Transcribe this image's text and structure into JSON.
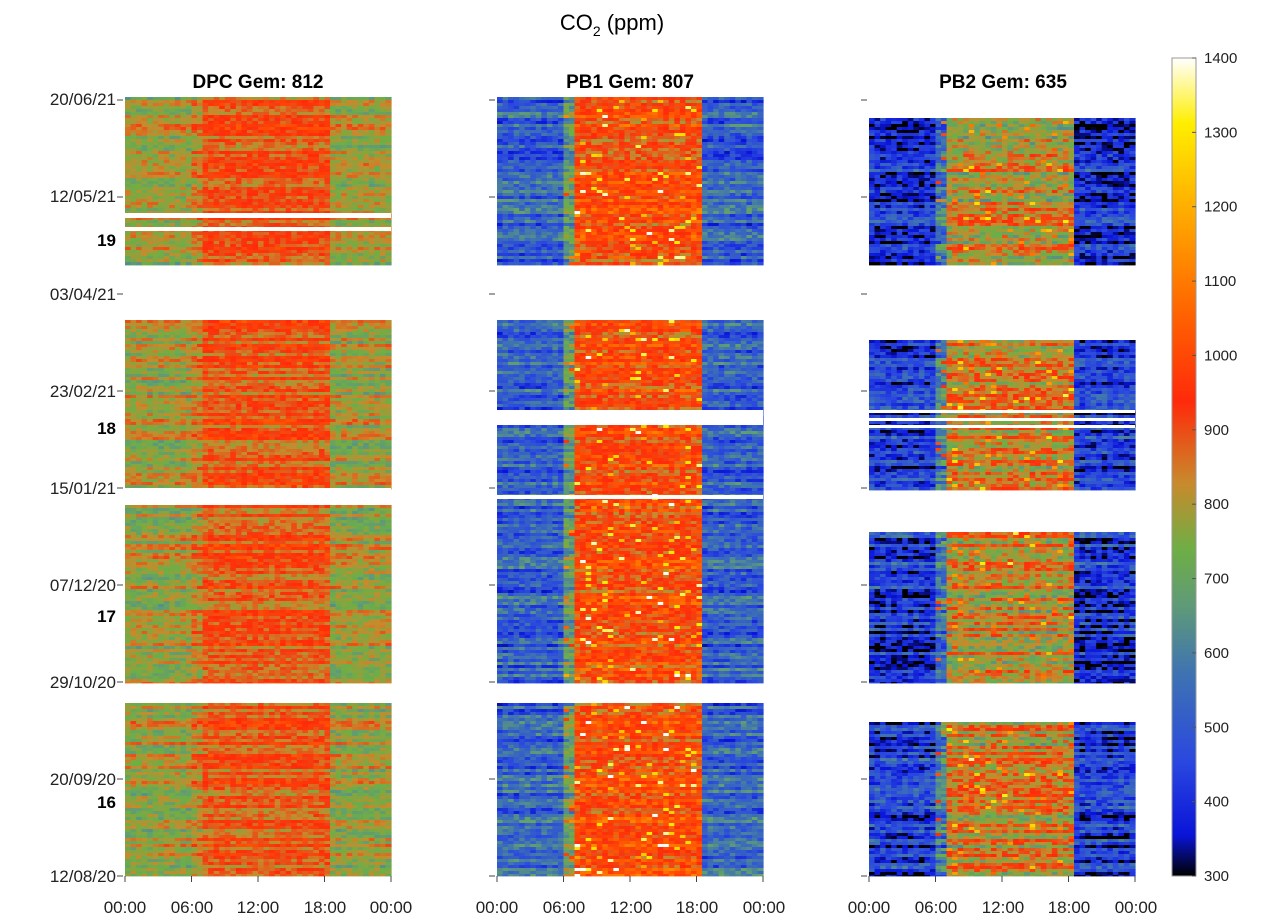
{
  "title": "CO",
  "title_sub": "2",
  "title_unit": " (ppm)",
  "chart_data": {
    "type": "heatmap",
    "title": "CO2 (ppm)",
    "x_ticks": [
      "00:00",
      "06:00",
      "12:00",
      "18:00",
      "00:00"
    ],
    "y_ticks": [
      "20/06/21",
      "12/05/21",
      "03/04/21",
      "23/02/21",
      "15/01/21",
      "07/12/20",
      "29/10/20",
      "20/09/20",
      "12/08/20"
    ],
    "period_labels": [
      "19",
      "18",
      "17",
      "16"
    ],
    "panels": [
      {
        "name": "DPC",
        "title": "DPC Gem: 812",
        "mean": 812
      },
      {
        "name": "PB1",
        "title": "PB1 Gem: 807",
        "mean": 807
      },
      {
        "name": "PB2",
        "title": "PB2 Gem: 635",
        "mean": 635
      }
    ],
    "colorbar": {
      "min": 300,
      "max": 1400,
      "ticks": [
        "1400",
        "1300",
        "1200",
        "1100",
        "1000",
        "900",
        "800",
        "700",
        "600",
        "500",
        "400",
        "300"
      ],
      "colormap": [
        "#000000",
        "#0a14d8",
        "#2a48e0",
        "#3f74b0",
        "#5f9a78",
        "#6fae45",
        "#c88a2c",
        "#ff2a0a",
        "#ff6a00",
        "#ffb000",
        "#ffee00",
        "#ffffff"
      ]
    }
  }
}
